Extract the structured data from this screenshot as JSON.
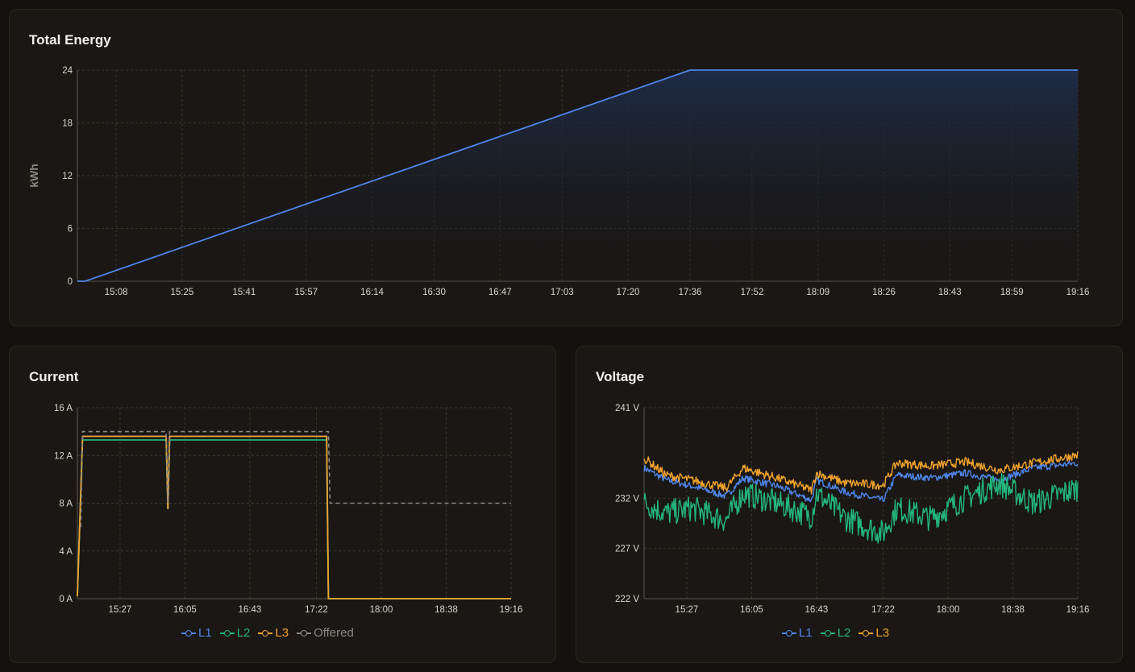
{
  "energy": {
    "title": "Total Energy",
    "ylabel": "kWh"
  },
  "current": {
    "title": "Current"
  },
  "voltage": {
    "title": "Voltage"
  },
  "colors": {
    "L1": "#4f86ec",
    "L2": "#23b57c",
    "L3": "#f0a22d",
    "Offered": "#8a8784",
    "energy_line": "#4f86ec"
  },
  "chart_data": [
    {
      "type": "area",
      "title": "Total Energy",
      "ylabel": "kWh",
      "ylim": [
        0,
        24
      ],
      "yticks": [
        "0",
        "6",
        "12",
        "18",
        "24"
      ],
      "xticks": [
        "15:08",
        "15:25",
        "15:41",
        "15:57",
        "16:14",
        "16:30",
        "16:47",
        "17:03",
        "17:20",
        "17:36",
        "17:52",
        "18:09",
        "18:26",
        "18:43",
        "18:59",
        "19:16"
      ],
      "grid": true,
      "series": [
        {
          "x": [
            "14:58",
            "15:00",
            "17:36",
            "19:16"
          ],
          "values": [
            0,
            0,
            24,
            24
          ]
        }
      ]
    },
    {
      "type": "line",
      "title": "Current",
      "ylim": [
        0,
        16
      ],
      "yticks": [
        "0 A",
        "4 A",
        "8 A",
        "12 A",
        "16 A"
      ],
      "xticks": [
        "15:27",
        "16:05",
        "16:43",
        "17:22",
        "18:00",
        "18:38",
        "19:16"
      ],
      "grid": true,
      "legend": "bottom",
      "series": [
        {
          "name": "L1",
          "x": [
            "15:02",
            "15:05",
            "15:07",
            "15:54",
            "15:55",
            "15:56",
            "17:28",
            "17:29",
            "19:16"
          ],
          "values": [
            0.2,
            13.6,
            13.6,
            13.6,
            7.5,
            13.6,
            13.6,
            0,
            0
          ]
        },
        {
          "name": "L2",
          "x": [
            "15:02",
            "15:05",
            "15:07",
            "15:54",
            "15:55",
            "15:56",
            "17:28",
            "17:29",
            "19:16"
          ],
          "values": [
            0.2,
            13.3,
            13.3,
            13.3,
            7.5,
            13.3,
            13.3,
            0,
            0
          ]
        },
        {
          "name": "L3",
          "x": [
            "15:02",
            "15:05",
            "15:07",
            "15:54",
            "15:55",
            "15:56",
            "17:28",
            "17:29",
            "19:16"
          ],
          "values": [
            0.2,
            13.6,
            13.6,
            13.6,
            7.5,
            13.6,
            13.6,
            0,
            0
          ]
        },
        {
          "name": "Offered",
          "x": [
            "15:04",
            "15:05",
            "15:54",
            "15:55",
            "15:56",
            "17:29",
            "17:30",
            "19:16"
          ],
          "values": [
            6,
            14,
            14,
            8,
            14,
            14,
            8,
            8
          ]
        }
      ]
    },
    {
      "type": "line",
      "title": "Voltage",
      "ylim": [
        222,
        241
      ],
      "yticks": [
        "222 V",
        "227 V",
        "232 V",
        "241 V"
      ],
      "ytick_values": [
        222,
        227,
        232,
        241
      ],
      "xticks": [
        "15:27",
        "16:05",
        "16:43",
        "17:22",
        "18:00",
        "18:38",
        "19:16"
      ],
      "grid": true,
      "legend": "bottom",
      "series": [
        {
          "name": "L1",
          "x": [
            "15:02",
            "15:15",
            "15:30",
            "15:50",
            "16:00",
            "16:20",
            "16:40",
            "16:43",
            "17:00",
            "17:22",
            "17:30",
            "17:50",
            "18:10",
            "18:30",
            "18:50",
            "19:16"
          ],
          "values": [
            235,
            233.8,
            233.2,
            232.2,
            234,
            233.2,
            231.8,
            233.8,
            232.6,
            231.8,
            234.3,
            234,
            234.5,
            233.8,
            235,
            235.5
          ]
        },
        {
          "name": "L2",
          "x": [
            "15:02",
            "15:15",
            "15:30",
            "15:50",
            "16:00",
            "16:20",
            "16:40",
            "16:43",
            "17:00",
            "17:22",
            "17:30",
            "17:50",
            "18:10",
            "18:30",
            "18:50",
            "19:16"
          ],
          "values": [
            231.5,
            230.5,
            231,
            229.8,
            232.5,
            231.5,
            230.2,
            232.5,
            230,
            228.5,
            231,
            230,
            232,
            233.5,
            231.5,
            233
          ]
        },
        {
          "name": "L3",
          "x": [
            "15:02",
            "15:15",
            "15:30",
            "15:50",
            "16:00",
            "16:20",
            "16:40",
            "16:43",
            "17:00",
            "17:22",
            "17:30",
            "17:50",
            "18:10",
            "18:30",
            "18:50",
            "19:16"
          ],
          "values": [
            236,
            234.3,
            233.8,
            233,
            235,
            234,
            232.8,
            234.5,
            233.5,
            233.3,
            235.5,
            235.2,
            235.6,
            234.8,
            235.5,
            236.3
          ]
        }
      ]
    }
  ]
}
